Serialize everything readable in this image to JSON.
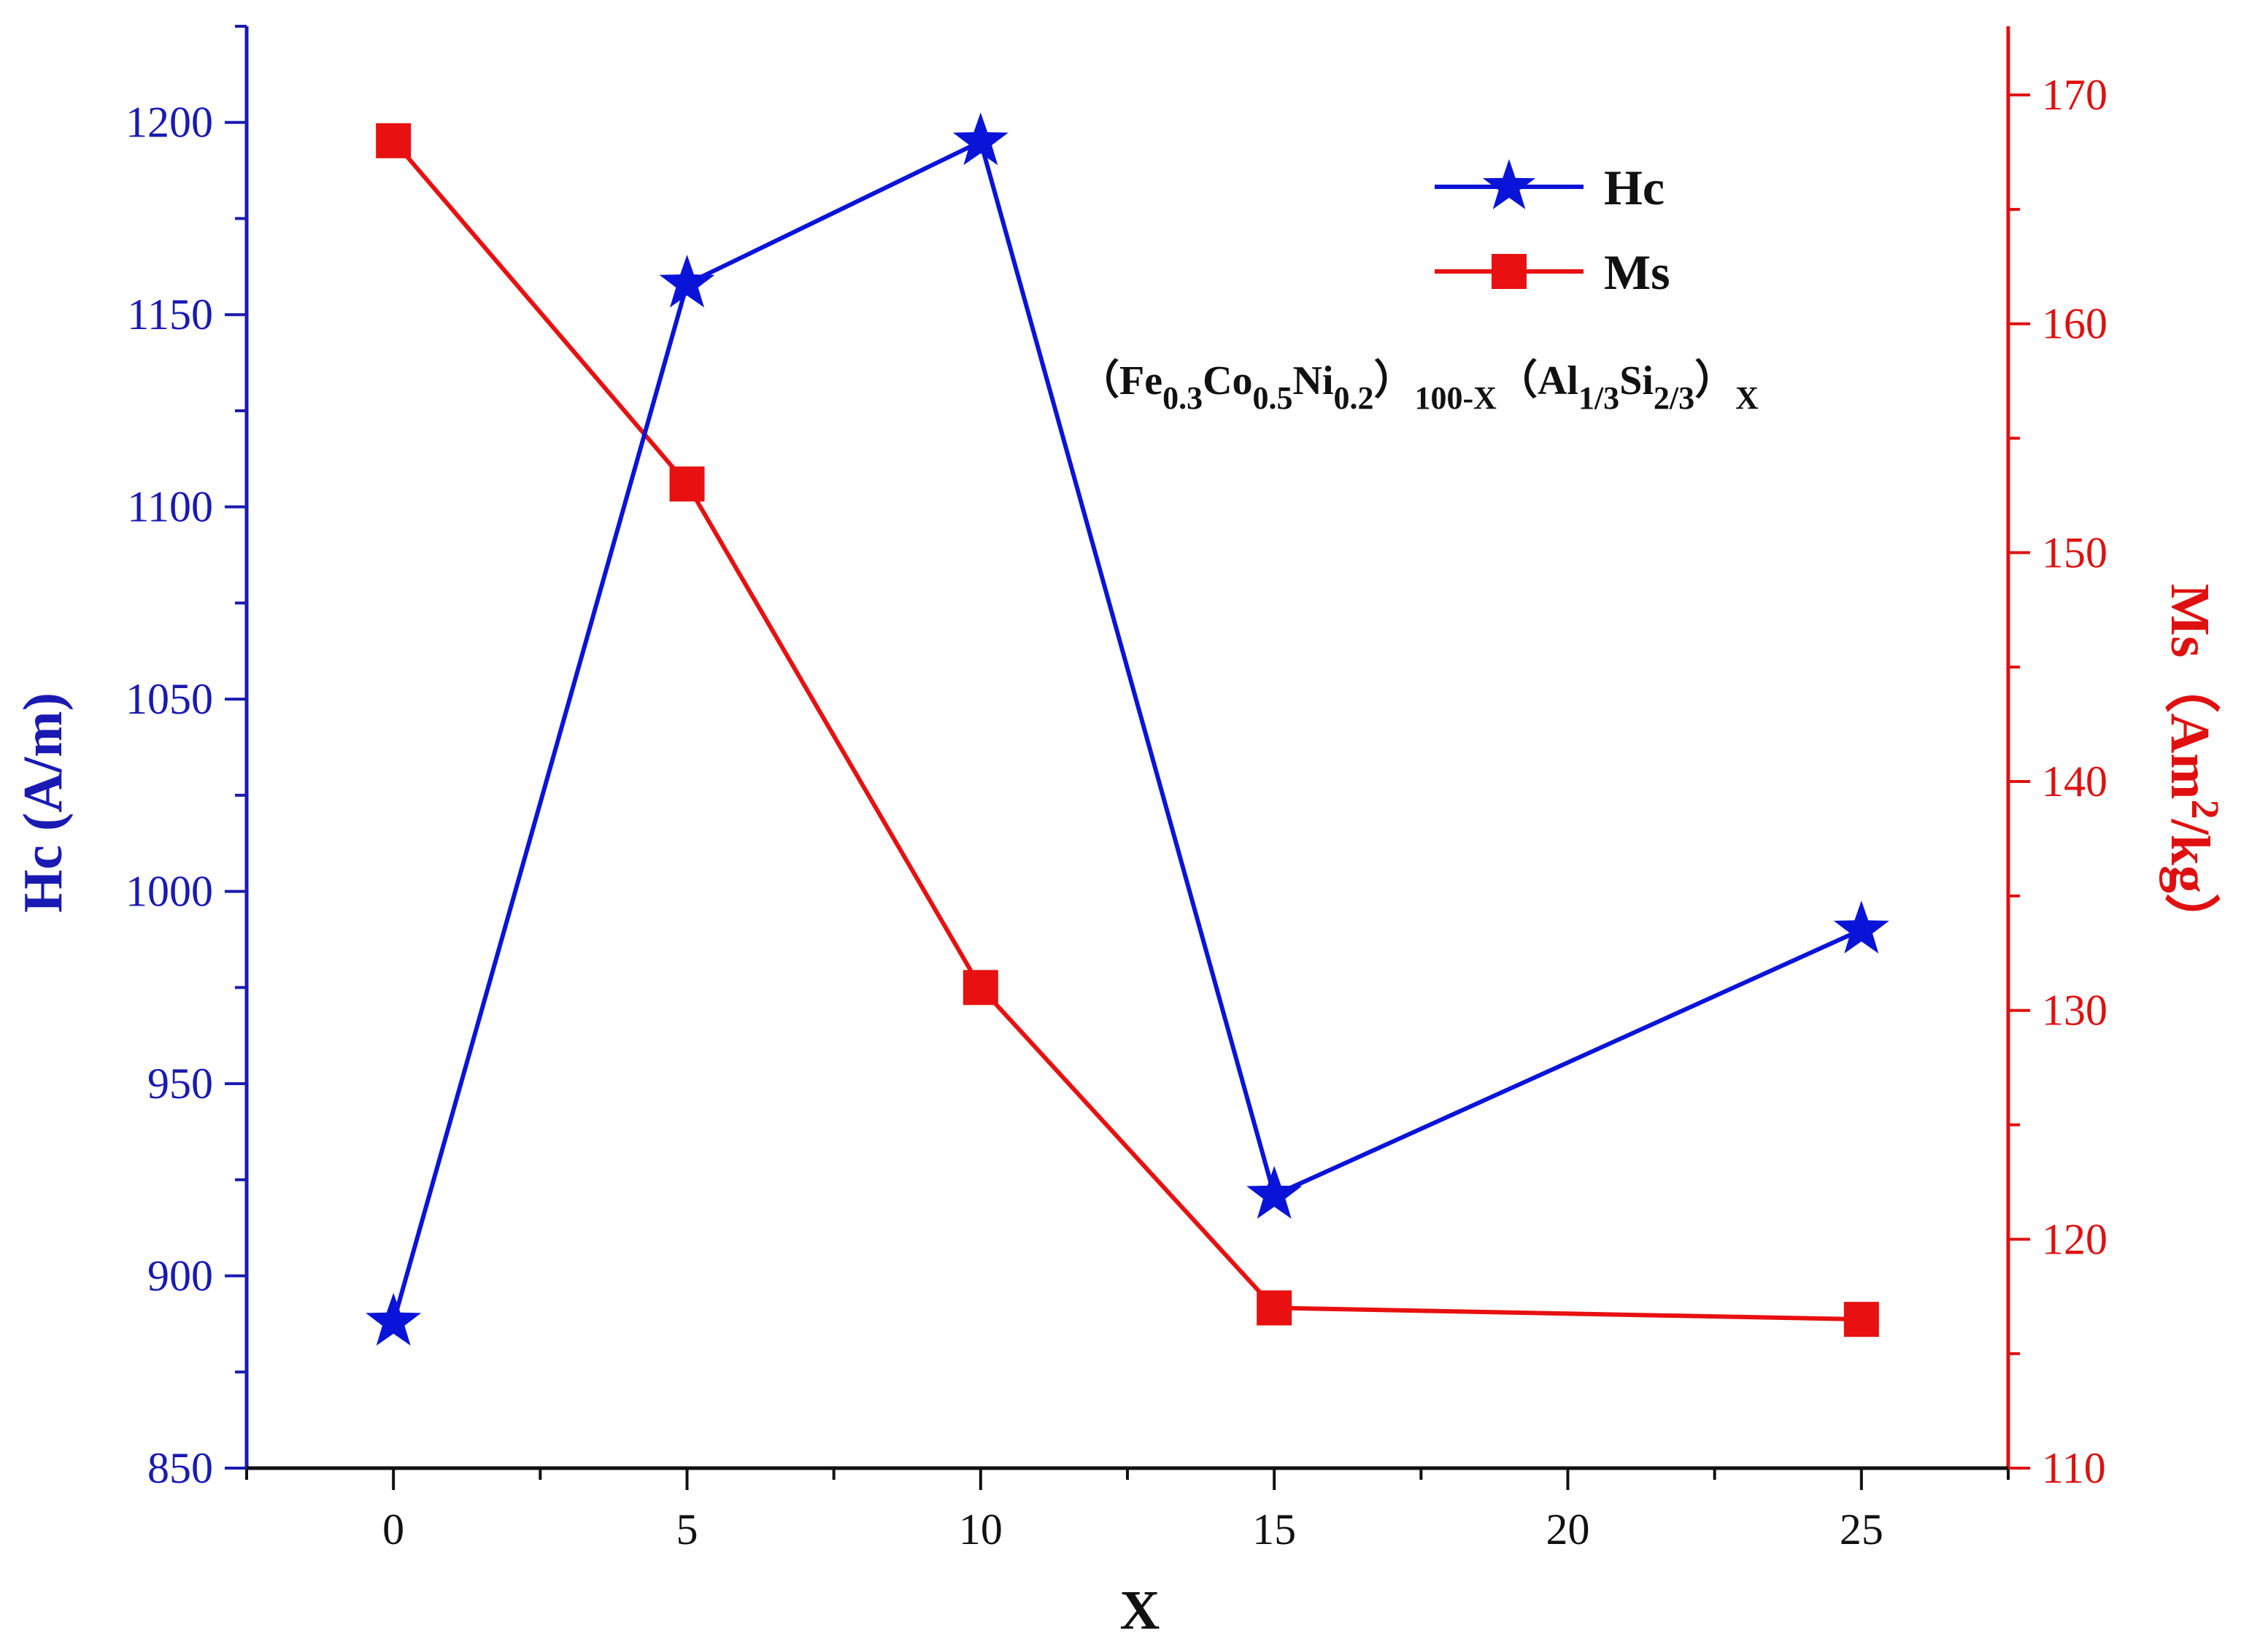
{
  "chart_data": {
    "type": "line",
    "xlabel": "X",
    "ylabel_left": "Hc (A/m)",
    "ylabel_right": "Ms（Am²/kg）",
    "ylabel_right_parts": {
      "main": "Ms（Am",
      "sup": "2",
      "tail": "/kg）"
    },
    "xlim": [
      -2.5,
      27.5
    ],
    "ylim_left": [
      850,
      1225
    ],
    "ylim_right": [
      110,
      173
    ],
    "x_ticks": [
      0,
      5,
      10,
      15,
      20,
      25
    ],
    "x_tick_labels": [
      "0",
      "5",
      "10",
      "15",
      "20",
      "25"
    ],
    "y_left_ticks": [
      850,
      900,
      950,
      1000,
      1050,
      1100,
      1150,
      1200
    ],
    "y_left_tick_labels": [
      "850",
      "900",
      "950",
      "1000",
      "1050",
      "1100",
      "1150",
      "1200"
    ],
    "y_right_ticks": [
      110,
      120,
      130,
      140,
      150,
      160,
      170
    ],
    "y_right_tick_labels": [
      "110",
      "120",
      "130",
      "140",
      "150",
      "160",
      "170"
    ],
    "grid": false,
    "legend_position": "top-right",
    "series": [
      {
        "name": "Hc",
        "axis": "left",
        "marker": "star",
        "color": "#0a14d8",
        "x": [
          0,
          5,
          10,
          15,
          25
        ],
        "values": [
          888,
          1158,
          1195,
          921,
          990
        ]
      },
      {
        "name": "Ms",
        "axis": "right",
        "marker": "square",
        "color": "#e81010",
        "x": [
          0,
          5,
          10,
          15,
          25
        ],
        "values": [
          168,
          153,
          131,
          117,
          116.5
        ]
      }
    ],
    "annotation": {
      "parts": [
        {
          "t": "（Fe",
          "s": "n"
        },
        {
          "t": "0.3",
          "s": "sub"
        },
        {
          "t": "Co",
          "s": "n"
        },
        {
          "t": "0.5",
          "s": "sub"
        },
        {
          "t": "Ni",
          "s": "n"
        },
        {
          "t": "0.2",
          "s": "sub"
        },
        {
          "t": "）",
          "s": "n"
        },
        {
          "t": "100-X",
          "s": "sub"
        },
        {
          "t": "（Al",
          "s": "n"
        },
        {
          "t": "1/3",
          "s": "sub"
        },
        {
          "t": "Si",
          "s": "n"
        },
        {
          "t": "2/3",
          "s": "sub"
        },
        {
          "t": "）",
          "s": "n"
        },
        {
          "t": "X",
          "s": "sub"
        }
      ]
    },
    "colors": {
      "left_axis": "#1a1ab3",
      "right_axis": "#e01010",
      "frame": "#111111"
    }
  }
}
